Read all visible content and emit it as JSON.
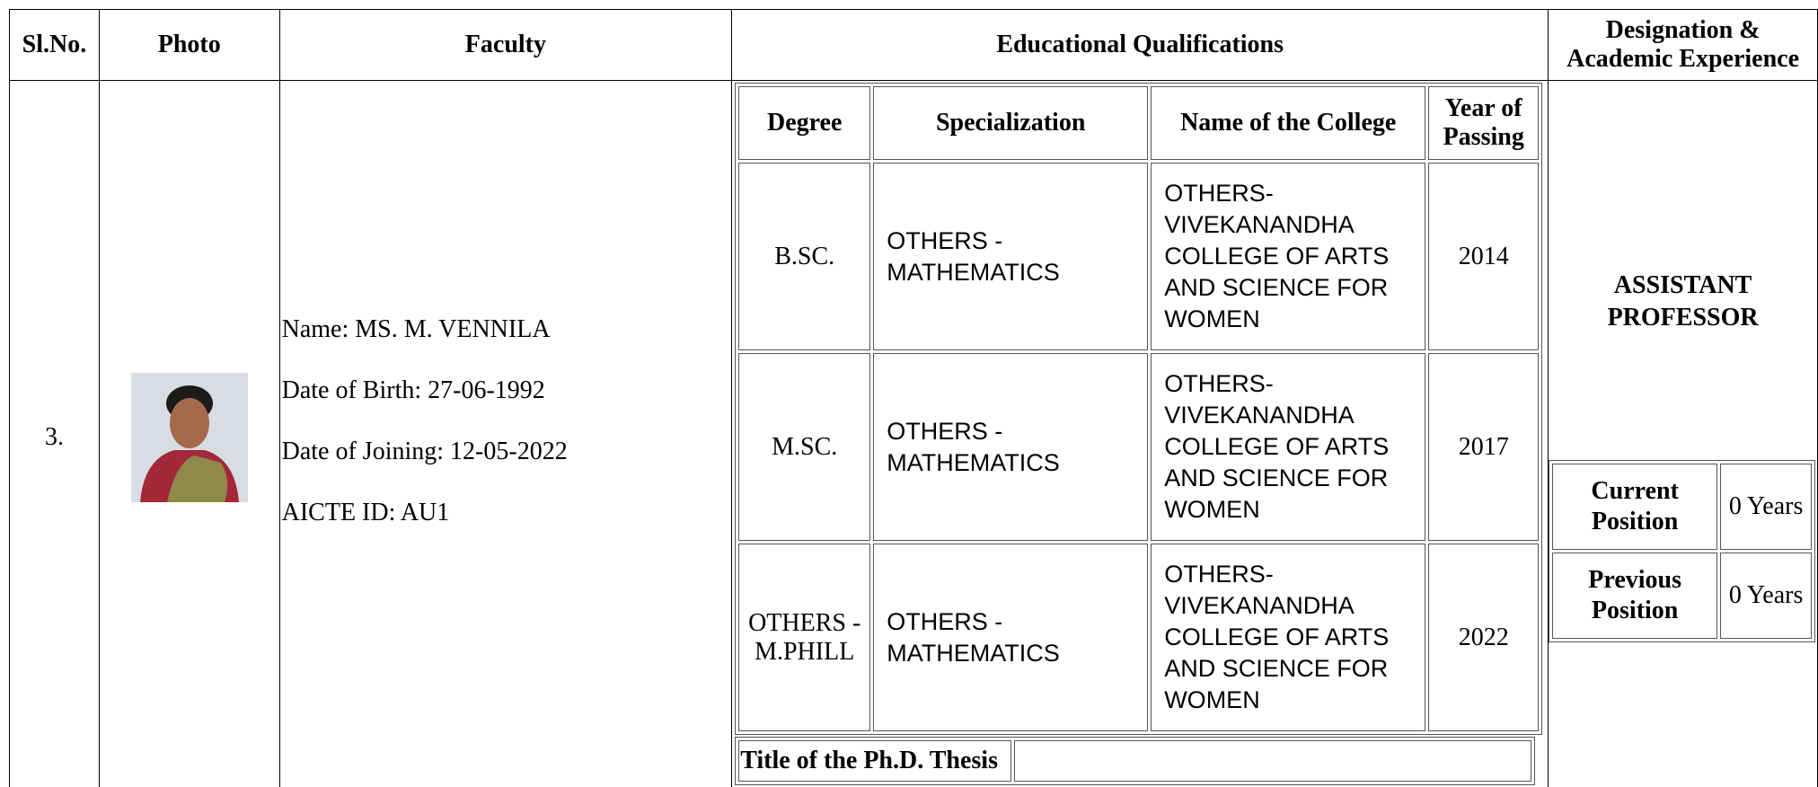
{
  "header": {
    "columns": [
      "Sl.No.",
      "Photo",
      "Faculty",
      "Educational Qualifications",
      "Designation & Academic Experience"
    ]
  },
  "faculty": {
    "sl_no": "3.",
    "name": "Name: MS. M. VENNILA",
    "dob": "Date of Birth: 27-06-1992",
    "doj": "Date of Joining: 12-05-2022",
    "aicte": "AICTE ID: AU1"
  },
  "qualifications": {
    "header": [
      "Degree",
      "Specialization",
      "Name of the College",
      "Year of Passing"
    ],
    "rows": [
      [
        "B.SC.",
        "OTHERS - MATHEMATICS",
        "OTHERS-VIVEKANANDHA COLLEGE OF ARTS AND SCIENCE FOR WOMEN",
        2014
      ],
      [
        "M.SC.",
        "OTHERS - MATHEMATICS",
        "OTHERS-VIVEKANANDHA COLLEGE OF ARTS AND SCIENCE FOR WOMEN",
        2017
      ],
      [
        "OTHERS - M.PHILL",
        "OTHERS - MATHEMATICS",
        "OTHERS-VIVEKANANDHA COLLEGE OF ARTS AND SCIENCE FOR WOMEN",
        2022
      ]
    ],
    "thesis_label": "Title of the Ph.D. Thesis"
  },
  "designation": {
    "title": "ASSISTANT PROFESSOR",
    "experience": [
      {
        "label": "Current Position",
        "value": "0 Years"
      },
      {
        "label": "Previous Position",
        "value": "0 Years"
      }
    ]
  }
}
